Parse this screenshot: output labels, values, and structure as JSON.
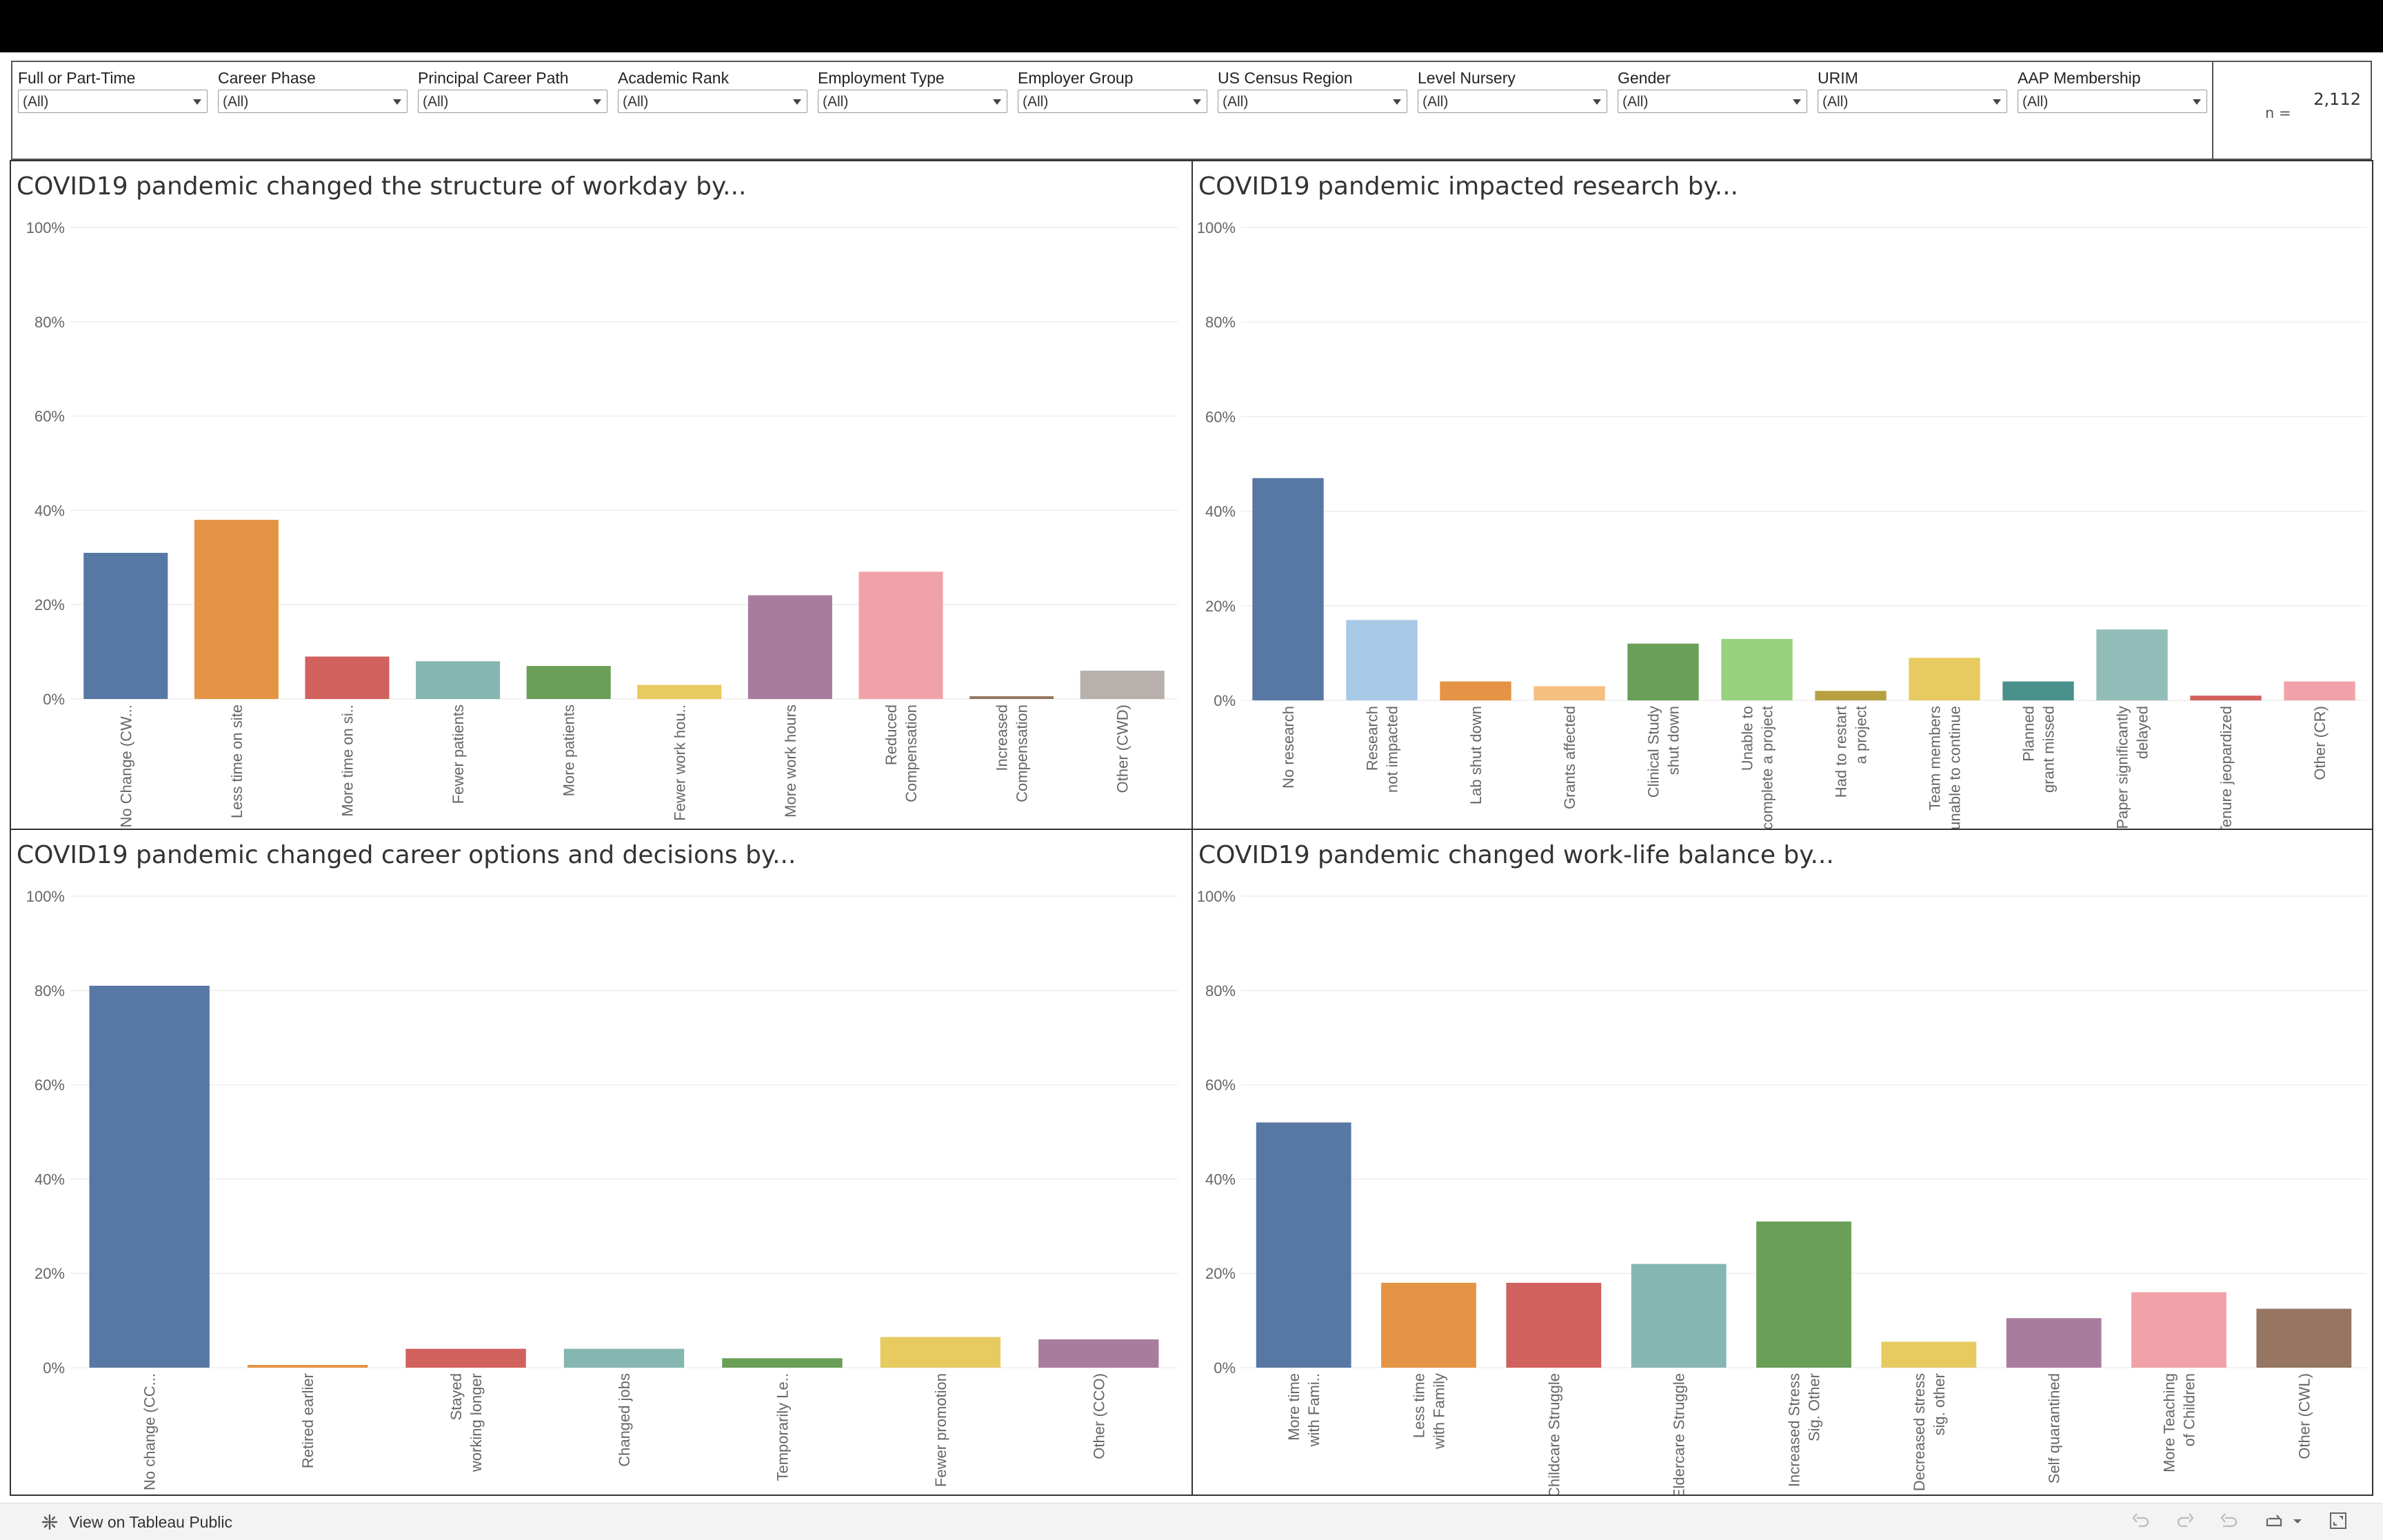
{
  "filters": [
    {
      "label": "Full or Part-Time",
      "value": "(All)"
    },
    {
      "label": "Career Phase",
      "value": "(All)"
    },
    {
      "label": "Principal Career Path",
      "value": "(All)"
    },
    {
      "label": "Academic Rank",
      "value": "(All)"
    },
    {
      "label": "Employment Type",
      "value": "(All)"
    },
    {
      "label": "Employer Group",
      "value": "(All)"
    },
    {
      "label": "US Census Region",
      "value": "(All)"
    },
    {
      "label": "Level Nursery",
      "value": "(All)"
    },
    {
      "label": "Gender",
      "value": "(All)"
    },
    {
      "label": "URIM",
      "value": "(All)"
    },
    {
      "label": "AAP Membership",
      "value": "(All)"
    }
  ],
  "count": {
    "label": "n =",
    "value": "2,112"
  },
  "footer": {
    "link_label": "View on Tableau Public"
  },
  "chart_data": [
    {
      "type": "bar",
      "title": "COVID19 pandemic changed the structure of workday by...",
      "categories": [
        "No Change (CW...",
        "Less time on site",
        "More time on si..",
        "Fewer patients",
        "More patients",
        "Fewer work hou..",
        "More work hours",
        "Reduced Compensation",
        "Increased Compensation",
        "Other (CWD)"
      ],
      "values": [
        31,
        38,
        9,
        8,
        7,
        3,
        22,
        27,
        0.5,
        6
      ],
      "colors": [
        "#5778a4",
        "#e49444",
        "#d1615d",
        "#85b6b2",
        "#6a9f58",
        "#e7ca60",
        "#a87c9f",
        "#f1a2a9",
        "#967662",
        "#b8b0ac"
      ],
      "yticks": [
        "0%",
        "20%",
        "40%",
        "60%",
        "80%",
        "100%"
      ],
      "ylim": [
        0,
        100
      ],
      "grid": true
    },
    {
      "type": "bar",
      "title": "COVID19 pandemic impacted research by...",
      "categories": [
        "No research",
        "Research not impacted",
        "Lab shut down",
        "Grants affected",
        "Clinical Study shut down",
        "Unable to complete a project",
        "Had to restart a project",
        "Team members unable to continue",
        "Planned grant missed",
        "Paper significantly delayed",
        "Tenure jeopardized",
        "Other (CR)"
      ],
      "values": [
        47,
        17,
        4,
        3,
        12,
        13,
        2,
        9,
        4,
        15,
        1,
        4
      ],
      "colors": [
        "#5778a4",
        "#a8c9e6",
        "#e49444",
        "#f5bf80",
        "#6a9f58",
        "#98d280",
        "#b8a040",
        "#e7ca60",
        "#4a908c",
        "#93bdb8",
        "#d1615d",
        "#f1a2a9"
      ],
      "yticks": [
        "0%",
        "20%",
        "40%",
        "60%",
        "80%",
        "100%"
      ],
      "ylim": [
        0,
        100
      ],
      "grid": true
    },
    {
      "type": "bar",
      "title": "COVID19 pandemic changed career options and decisions by...",
      "categories": [
        "No change (CC...",
        "Retired earlier",
        "Stayed working longer",
        "Changed jobs",
        "Temporarily Le..",
        "Fewer promotion",
        "Other (CCO)"
      ],
      "values": [
        81,
        0.5,
        4,
        4,
        2,
        6.5,
        6
      ],
      "colors": [
        "#5778a4",
        "#e49444",
        "#d1615d",
        "#85b6b2",
        "#6a9f58",
        "#e7ca60",
        "#a87c9f"
      ],
      "yticks": [
        "0%",
        "20%",
        "40%",
        "60%",
        "80%",
        "100%"
      ],
      "ylim": [
        0,
        100
      ],
      "grid": true
    },
    {
      "type": "bar",
      "title": "COVID19 pandemic changed work-life balance by...",
      "categories": [
        "More time with Fami..",
        "Less time with Family",
        "Childcare Struggle",
        "Eldercare Struggle",
        "Increased Stress Sig. Other",
        "Decreased stress sig. other",
        "Self quarantined",
        "More Teaching of Children",
        "Other (CWL)"
      ],
      "values": [
        52,
        18,
        18,
        22,
        31,
        5.5,
        10.5,
        16,
        12.5
      ],
      "colors": [
        "#5778a4",
        "#e49444",
        "#d1615d",
        "#85b6b2",
        "#6a9f58",
        "#e7ca60",
        "#a87c9f",
        "#f1a2a9",
        "#967662"
      ],
      "yticks": [
        "0%",
        "20%",
        "40%",
        "60%",
        "80%",
        "100%"
      ],
      "ylim": [
        0,
        100
      ],
      "grid": true
    }
  ]
}
